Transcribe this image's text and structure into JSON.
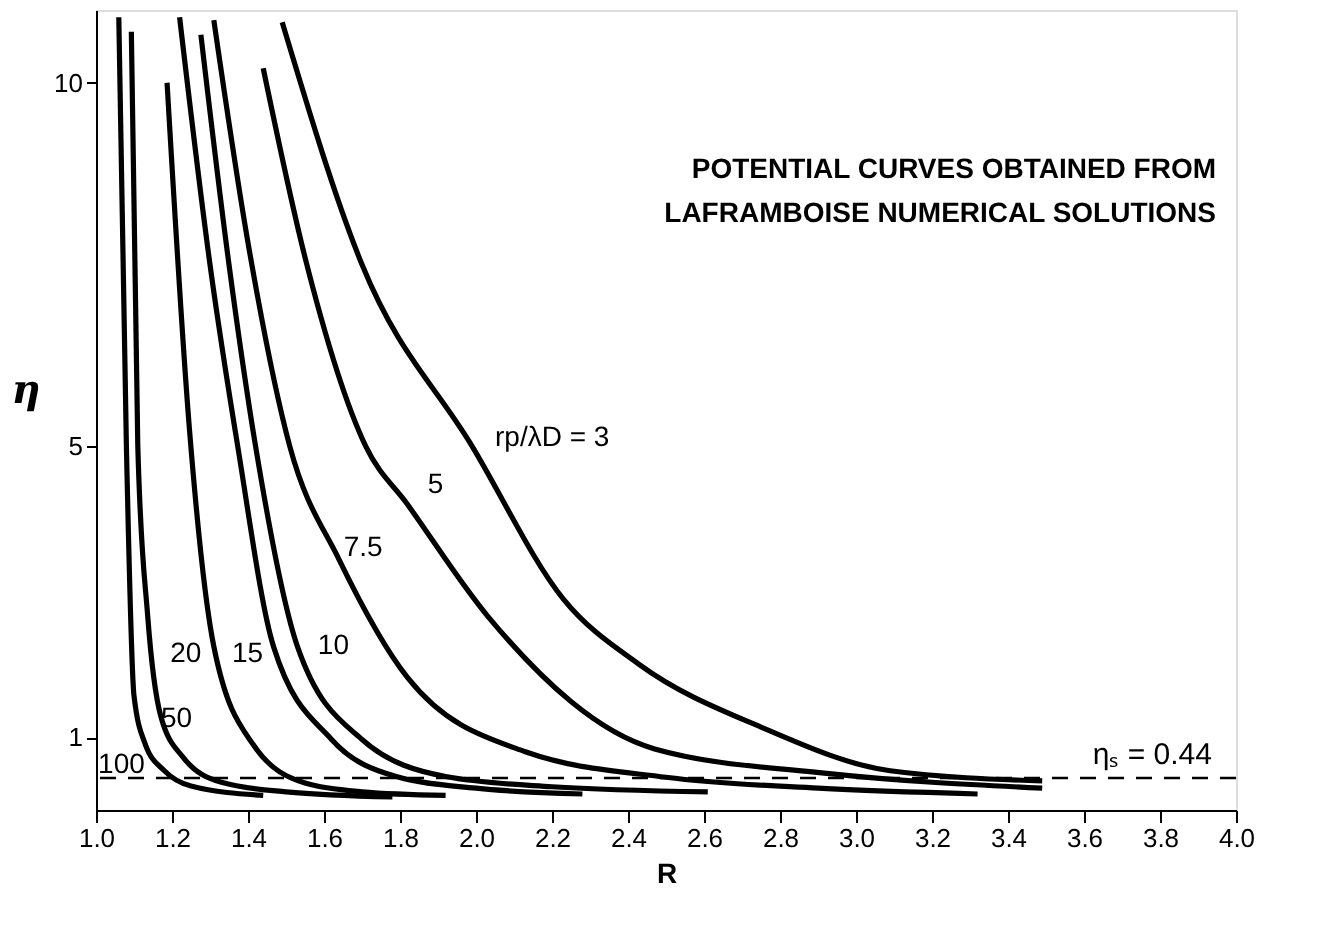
{
  "chart_data": {
    "type": "line",
    "xlabel": "R",
    "ylabel": "η",
    "annotations": [
      "POTENTIAL CURVES OBTAINED FROM",
      "LAFRAMBOISE NUMERICAL SOLUTIONS"
    ],
    "xlim": [
      1.0,
      4.0
    ],
    "xticks": [
      {
        "value": 1,
        "label": "1.0"
      },
      1.2,
      1.4,
      1.6,
      1.8,
      {
        "value": 2,
        "label": "2.0"
      },
      2.2,
      2.4,
      2.6,
      2.8,
      {
        "value": 3,
        "label": "3.0"
      },
      3.2,
      3.4,
      3.6,
      3.8,
      {
        "value": 4,
        "label": "4.0"
      }
    ],
    "ylim": [
      0,
      11
    ],
    "yticks": [
      1,
      5,
      10
    ],
    "grid": false,
    "legend": false,
    "marker": "none",
    "line_style": "solid",
    "ref_lines": [
      {
        "axis": "y",
        "value": 0.44,
        "label": "ηₛ = 0.44",
        "line_style": "dashed",
        "color": "#000000"
      }
    ],
    "series": [
      {
        "name": "100",
        "color": "#000000",
        "x": [
          1.06,
          1.08,
          1.1,
          1.13,
          1.18,
          1.25,
          1.44
        ],
        "values": [
          10.9,
          5.0,
          1.57,
          0.9,
          0.54,
          0.33,
          0.2
        ]
      },
      {
        "name": "50",
        "color": "#000000",
        "x": [
          1.093,
          1.11,
          1.136,
          1.17,
          1.23,
          1.33,
          1.5,
          1.78
        ],
        "values": [
          10.7,
          5.0,
          2.67,
          1.3,
          0.72,
          0.38,
          0.25,
          0.18
        ]
      },
      {
        "name": "20",
        "color": "#000000",
        "x": [
          1.187,
          1.246,
          1.31,
          1.415,
          1.55,
          1.7,
          1.92
        ],
        "values": [
          10.0,
          5.23,
          2.25,
          0.89,
          0.37,
          0.25,
          0.2
        ]
      },
      {
        "name": "15",
        "color": "#000000",
        "x": [
          1.22,
          1.3,
          1.373,
          1.467,
          1.62,
          1.79,
          2.0,
          2.28
        ],
        "values": [
          10.9,
          7.5,
          5.0,
          2.25,
          0.97,
          0.46,
          0.3,
          0.22
        ]
      },
      {
        "name": "10",
        "color": "#000000",
        "x": [
          1.276,
          1.35,
          1.42,
          1.53,
          1.7,
          1.92,
          2.2,
          2.61
        ],
        "values": [
          10.66,
          7.5,
          5.0,
          2.25,
          0.97,
          0.46,
          0.32,
          0.25
        ]
      },
      {
        "name": "7.5",
        "color": "#000000",
        "x": [
          1.31,
          1.4,
          1.51,
          1.64,
          1.82,
          2.13,
          2.5,
          2.9,
          3.32
        ],
        "values": [
          10.86,
          7.8,
          5.0,
          3.44,
          1.82,
          0.8,
          0.45,
          0.3,
          0.22
        ]
      },
      {
        "name": "5",
        "color": "#000000",
        "x": [
          1.44,
          1.55,
          1.71,
          1.82,
          2.03,
          2.47,
          2.93,
          3.49
        ],
        "values": [
          10.2,
          7.6,
          5.0,
          4.2,
          2.67,
          0.84,
          0.5,
          0.3
        ]
      },
      {
        "name": "rp/λD = 3",
        "color": "#000000",
        "x": [
          1.49,
          1.7,
          1.99,
          2.23,
          2.43,
          2.75,
          3.09,
          3.49
        ],
        "values": [
          10.83,
          7.5,
          5.0,
          2.9,
          2.0,
          1.14,
          0.54,
          0.4
        ]
      }
    ]
  }
}
